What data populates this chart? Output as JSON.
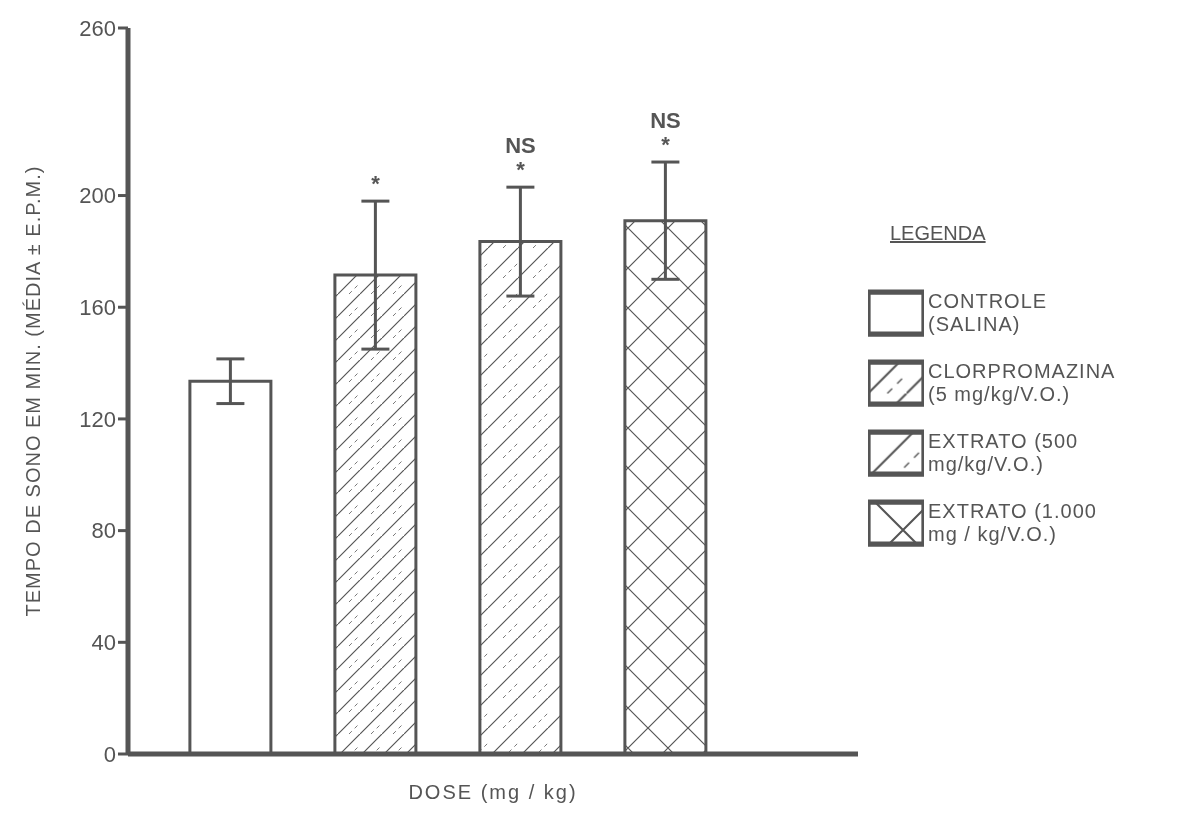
{
  "chart_data": {
    "type": "bar",
    "stacked": true,
    "xlabel": "DOSE   (mg / kg)",
    "ylabel": "TEMPO DE SONO EM MIN. (MÉDIA ± E.P.M.)",
    "legend_title": "LEGENDA",
    "legend": "right",
    "categories": [
      null,
      null,
      null,
      null
    ],
    "series": [
      {
        "name": "CONTROLE (SALINA)",
        "color": "#555555",
        "values": [
          133.5,
          null,
          null,
          null
        ],
        "errors": [
          8,
          null,
          null,
          null
        ]
      },
      {
        "name": "CLORPROMAZINA (5 mg/kg/V.O.)",
        "color": "#555555",
        "values": [
          null,
          171.5,
          null,
          null
        ],
        "errors": [
          null,
          26.5,
          null,
          null
        ]
      },
      {
        "name": "EXTRATO (500 mg/kg/V.O.)",
        "color": "#555555",
        "values": [
          null,
          null,
          183.5,
          null
        ],
        "errors": [
          null,
          null,
          19.5,
          null
        ]
      },
      {
        "name": "EXTRATO (1.000 mg / kg/V.O.)",
        "color": "#555555",
        "values": [
          null,
          null,
          null,
          191
        ],
        "errors": [
          null,
          null,
          null,
          21
        ]
      }
    ],
    "annotations": [
      {
        "text": "*",
        "y": 198
      },
      {
        "text": "*",
        "y": 203
      },
      {
        "text": "NS",
        "y": 203
      },
      {
        "text": "*",
        "y": 212
      },
      {
        "text": "NS",
        "y": 212
      }
    ],
    "ylim": [
      0,
      260
    ],
    "yticks": [
      0,
      40,
      80,
      120,
      160,
      200,
      260
    ],
    "grid": false
  }
}
